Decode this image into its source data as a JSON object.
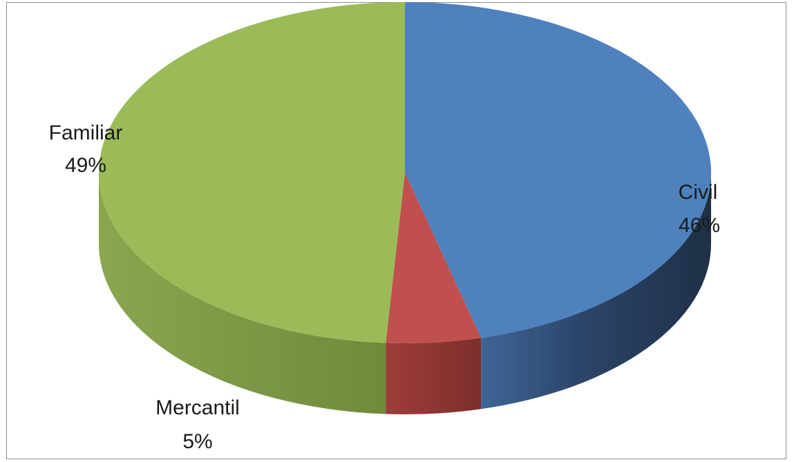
{
  "chart_data": {
    "type": "pie",
    "style": "3d",
    "title": "",
    "categories": [
      "Civil",
      "Mercantil",
      "Familiar"
    ],
    "values": [
      46,
      5,
      49
    ],
    "labels": [
      {
        "name": "Civil",
        "percent": "46%"
      },
      {
        "name": "Mercantil",
        "percent": "5%"
      },
      {
        "name": "Familiar",
        "percent": "49%"
      }
    ],
    "colors": {
      "Civil": "#4f81bd",
      "Mercantil": "#c0504d",
      "Familiar": "#9bbb59"
    },
    "legend": "none"
  }
}
